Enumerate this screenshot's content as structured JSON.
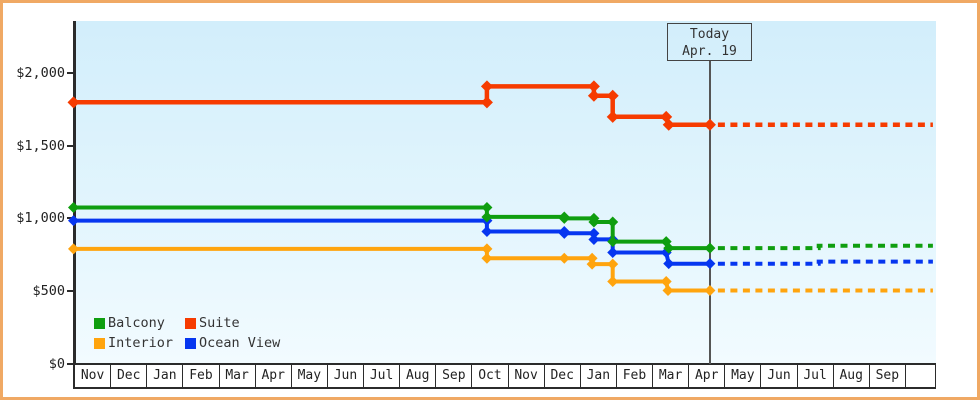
{
  "window": {
    "frame_border_color": "#f0a964",
    "background_color": "#ffffff"
  },
  "chart_data": {
    "type": "line",
    "title": "",
    "description": "Cruise cabin price history step chart with dotted forecast after today",
    "plot_background": {
      "top": "#d2eefb",
      "bottom": "#f2fbff"
    },
    "y_axis": {
      "min": 0,
      "max": 2000,
      "tick_values": [
        2000,
        1500,
        1000,
        500,
        0
      ],
      "tick_labels": [
        "$2,000",
        "$1,500",
        "$1,000",
        "$500",
        "$0"
      ],
      "grid": false
    },
    "x_axis": {
      "months": [
        "Nov",
        "Dec",
        "Jan",
        "Feb",
        "Mar",
        "Apr",
        "May",
        "Jun",
        "Jul",
        "Aug",
        "Sep",
        "Oct",
        "Nov",
        "Dec",
        "Jan",
        "Feb",
        "Mar",
        "Apr",
        "May",
        "Jun",
        "Jul",
        "Aug",
        "Sep"
      ]
    },
    "today": {
      "line1": "Today",
      "line2": "Apr. 19",
      "month_offset": 17.61,
      "line_color": "#555555",
      "box_border_color": "#444444"
    },
    "series": [
      {
        "name": "Balcony",
        "color": "#0f9e0f",
        "solid": [
          [
            0,
            1075
          ],
          [
            11.44,
            1075
          ],
          [
            11.44,
            1010
          ],
          [
            13.58,
            1010
          ],
          [
            13.58,
            1000
          ],
          [
            14.4,
            1000
          ],
          [
            14.4,
            975
          ],
          [
            14.92,
            975
          ],
          [
            14.92,
            840
          ],
          [
            16.4,
            840
          ],
          [
            16.47,
            795
          ],
          [
            17.61,
            795
          ]
        ],
        "forecast": [
          [
            17.61,
            795
          ],
          [
            20.62,
            795
          ],
          [
            20.62,
            812
          ],
          [
            23.78,
            812
          ]
        ]
      },
      {
        "name": "Suite",
        "color": "#f63b00",
        "solid": [
          [
            0,
            1800
          ],
          [
            11.44,
            1800
          ],
          [
            11.44,
            1910
          ],
          [
            14.4,
            1910
          ],
          [
            14.4,
            1845
          ],
          [
            14.92,
            1845
          ],
          [
            14.92,
            1700
          ],
          [
            16.4,
            1700
          ],
          [
            16.47,
            1645
          ],
          [
            17.61,
            1645
          ]
        ],
        "forecast": [
          [
            17.61,
            1645
          ],
          [
            23.78,
            1645
          ]
        ]
      },
      {
        "name": "Interior",
        "color": "#ffa40e",
        "solid": [
          [
            0,
            790
          ],
          [
            11.44,
            790
          ],
          [
            11.44,
            725
          ],
          [
            13.58,
            725
          ],
          [
            14.35,
            725
          ],
          [
            14.35,
            685
          ],
          [
            14.92,
            685
          ],
          [
            14.92,
            565
          ],
          [
            16.4,
            565
          ],
          [
            16.45,
            503
          ],
          [
            17.61,
            503
          ]
        ],
        "forecast": [
          [
            17.61,
            503
          ],
          [
            23.78,
            503
          ]
        ]
      },
      {
        "name": "Ocean View",
        "color": "#0636f0",
        "solid": [
          [
            0,
            985
          ],
          [
            11.44,
            985
          ],
          [
            11.44,
            910
          ],
          [
            13.58,
            910
          ],
          [
            13.58,
            897
          ],
          [
            14.4,
            897
          ],
          [
            14.4,
            855
          ],
          [
            14.92,
            855
          ],
          [
            14.92,
            765
          ],
          [
            16.4,
            765
          ],
          [
            16.47,
            688
          ],
          [
            17.61,
            688
          ]
        ],
        "forecast": [
          [
            17.61,
            688
          ],
          [
            20.62,
            688
          ],
          [
            20.62,
            702
          ],
          [
            23.78,
            702
          ]
        ]
      }
    ],
    "legend": {
      "position": "bottom-left",
      "order": [
        "Balcony",
        "Suite",
        "Interior",
        "Ocean View"
      ]
    }
  }
}
